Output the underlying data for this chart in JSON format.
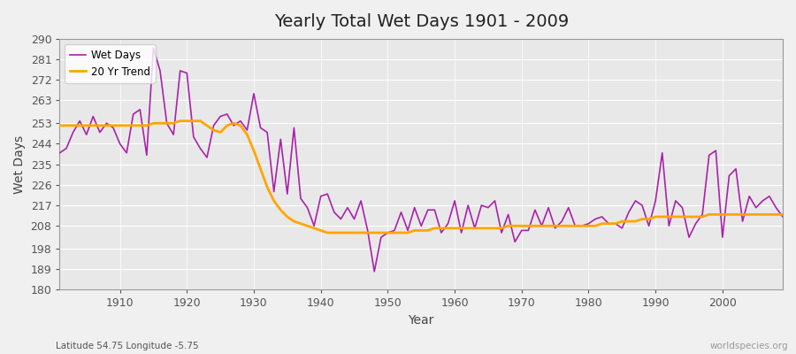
{
  "title": "Yearly Total Wet Days 1901 - 2009",
  "xlabel": "Year",
  "ylabel": "Wet Days",
  "lat_lon_label": "Latitude 54.75 Longitude -5.75",
  "watermark": "worldspecies.org",
  "wet_days_color": "#aa22aa",
  "trend_color": "#ffa500",
  "bg_color": "#f0f0f0",
  "plot_bg_color": "#e8e8e8",
  "grid_color": "#ffffff",
  "ylim": [
    180,
    290
  ],
  "yticks": [
    180,
    189,
    198,
    208,
    217,
    226,
    235,
    244,
    253,
    263,
    272,
    281,
    290
  ],
  "xticks": [
    1910,
    1920,
    1930,
    1940,
    1950,
    1960,
    1970,
    1980,
    1990,
    2000
  ],
  "xlim": [
    1901,
    2009
  ],
  "years": [
    1901,
    1902,
    1903,
    1904,
    1905,
    1906,
    1907,
    1908,
    1909,
    1910,
    1911,
    1912,
    1913,
    1914,
    1915,
    1916,
    1917,
    1918,
    1919,
    1920,
    1921,
    1922,
    1923,
    1924,
    1925,
    1926,
    1927,
    1928,
    1929,
    1930,
    1931,
    1932,
    1933,
    1934,
    1935,
    1936,
    1937,
    1938,
    1939,
    1940,
    1941,
    1942,
    1943,
    1944,
    1945,
    1946,
    1947,
    1948,
    1949,
    1950,
    1951,
    1952,
    1953,
    1954,
    1955,
    1956,
    1957,
    1958,
    1959,
    1960,
    1961,
    1962,
    1963,
    1964,
    1965,
    1966,
    1967,
    1968,
    1969,
    1970,
    1971,
    1972,
    1973,
    1974,
    1975,
    1976,
    1977,
    1978,
    1979,
    1980,
    1981,
    1982,
    1983,
    1984,
    1985,
    1986,
    1987,
    1988,
    1989,
    1990,
    1991,
    1992,
    1993,
    1994,
    1995,
    1996,
    1997,
    1998,
    1999,
    2000,
    2001,
    2002,
    2003,
    2004,
    2005,
    2006,
    2007,
    2008,
    2009
  ],
  "wet_days": [
    240,
    242,
    249,
    254,
    248,
    256,
    249,
    253,
    251,
    244,
    240,
    257,
    259,
    239,
    286,
    276,
    253,
    248,
    276,
    275,
    247,
    242,
    238,
    252,
    256,
    257,
    252,
    254,
    250,
    266,
    251,
    249,
    223,
    246,
    222,
    251,
    220,
    216,
    208,
    221,
    222,
    214,
    211,
    216,
    211,
    219,
    206,
    188,
    203,
    205,
    206,
    214,
    206,
    216,
    208,
    215,
    215,
    205,
    209,
    219,
    205,
    217,
    207,
    217,
    216,
    219,
    205,
    213,
    201,
    206,
    206,
    215,
    208,
    216,
    207,
    210,
    216,
    208,
    208,
    209,
    211,
    212,
    209,
    209,
    207,
    214,
    219,
    217,
    208,
    219,
    240,
    208,
    219,
    216,
    203,
    209,
    213,
    239,
    241,
    203,
    230,
    233,
    210,
    221,
    216,
    219,
    221,
    216,
    212
  ],
  "trend": [
    252,
    252,
    252,
    252,
    252,
    252,
    252,
    252,
    252,
    252,
    252,
    252,
    252,
    252,
    253,
    253,
    253,
    253,
    254,
    254,
    254,
    254,
    252,
    250,
    249,
    252,
    253,
    252,
    248,
    241,
    233,
    225,
    219,
    215,
    212,
    210,
    209,
    208,
    207,
    206,
    205,
    205,
    205,
    205,
    205,
    205,
    205,
    205,
    205,
    205,
    205,
    205,
    205,
    206,
    206,
    206,
    207,
    207,
    207,
    207,
    207,
    207,
    207,
    207,
    207,
    207,
    207,
    208,
    208,
    208,
    208,
    208,
    208,
    208,
    208,
    208,
    208,
    208,
    208,
    208,
    208,
    209,
    209,
    209,
    210,
    210,
    210,
    211,
    211,
    212,
    212,
    212,
    212,
    212,
    212,
    212,
    212,
    213,
    213,
    213,
    213,
    213,
    213,
    213,
    213,
    213,
    213,
    213,
    213
  ]
}
